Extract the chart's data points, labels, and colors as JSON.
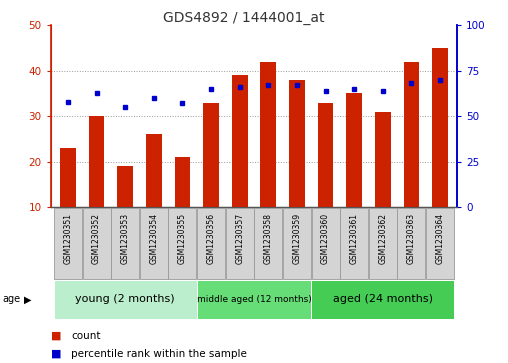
{
  "title": "GDS4892 / 1444001_at",
  "samples": [
    "GSM1230351",
    "GSM1230352",
    "GSM1230353",
    "GSM1230354",
    "GSM1230355",
    "GSM1230356",
    "GSM1230357",
    "GSM1230358",
    "GSM1230359",
    "GSM1230360",
    "GSM1230361",
    "GSM1230362",
    "GSM1230363",
    "GSM1230364"
  ],
  "counts": [
    23,
    30,
    19,
    26,
    21,
    33,
    39,
    42,
    38,
    33,
    35,
    31,
    42,
    45
  ],
  "percentiles": [
    58,
    63,
    55,
    60,
    57,
    65,
    66,
    67,
    67,
    64,
    65,
    64,
    68,
    70
  ],
  "ylim_left": [
    10,
    50
  ],
  "ylim_right": [
    0,
    100
  ],
  "yticks_left": [
    10,
    20,
    30,
    40,
    50
  ],
  "yticks_right": [
    0,
    25,
    50,
    75,
    100
  ],
  "bar_color": "#cc2200",
  "dot_color": "#0000cc",
  "groups": [
    {
      "label": "young (2 months)",
      "start": 0,
      "end": 5,
      "color": "#bbeecc",
      "fontsize": 8
    },
    {
      "label": "middle aged (12 months)",
      "start": 5,
      "end": 9,
      "color": "#66dd77",
      "fontsize": 6.5
    },
    {
      "label": "aged (24 months)",
      "start": 9,
      "end": 14,
      "color": "#44cc55",
      "fontsize": 8
    }
  ],
  "legend_count_label": "count",
  "legend_pct_label": "percentile rank within the sample",
  "age_label": "age",
  "grid_yticks": [
    20,
    30,
    40
  ],
  "grid_color": "#999999",
  "title_fontsize": 10,
  "tick_fontsize": 7.5,
  "sample_fontsize": 5.5,
  "bar_width": 0.55
}
